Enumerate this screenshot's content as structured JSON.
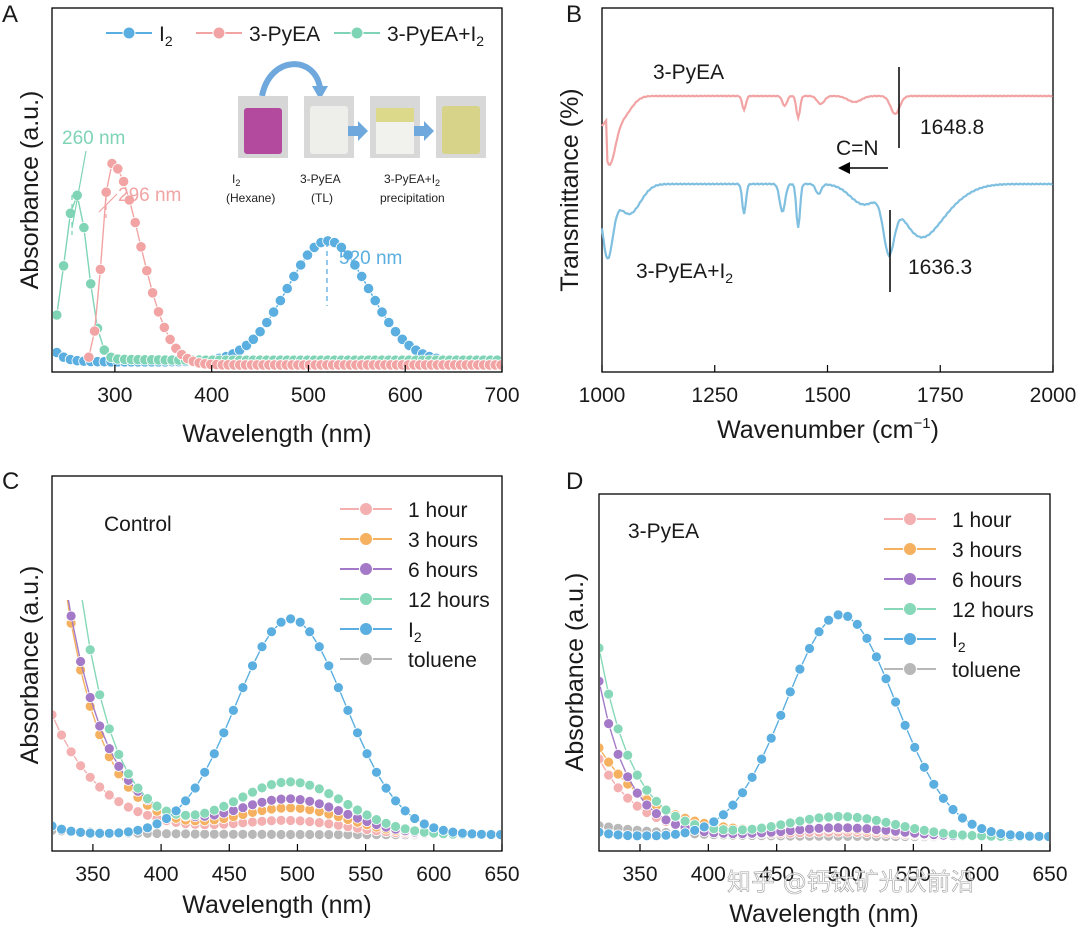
{
  "colors": {
    "i2": "#5aaee0",
    "pyea": "#f2a4a4",
    "pyea_i2": "#7fd4b6",
    "h1": "#f4b0b0",
    "h3": "#f5b160",
    "h6": "#a47ac8",
    "h12": "#86d8b8",
    "toluene": "#b8b8b8"
  },
  "watermark": "知乎 @钙钛矿光伏前沿",
  "chart_data": [
    {
      "panel": "A",
      "type": "scatter",
      "xlabel": "Wavelength (nm)",
      "ylabel": "Absorbance (a.u.)",
      "xlim": [
        235,
        700
      ],
      "xticks": [
        "300",
        "400",
        "500",
        "600",
        "700"
      ],
      "legend": [
        "I2",
        "3-PyEA",
        "3-PyEA+I2"
      ],
      "annotations": [
        "260 nm",
        "296 nm",
        "520 nm"
      ],
      "inset_labels": [
        "I2",
        "(Hexane)",
        "3-PyEA",
        "(TL)",
        "3-PyEA+I2",
        "precipitation"
      ],
      "series": [
        {
          "name": "I2",
          "peak": 520,
          "width": 42,
          "height": 0.78,
          "baseline": 0.04
        },
        {
          "name": "3-PyEA",
          "peak": 296,
          "width": 30,
          "height": 1.3,
          "baseline": 0.02
        },
        {
          "name": "3-PyEA+I2",
          "peak": 260,
          "width": 12,
          "height": 1.05,
          "baseline": 0.05
        }
      ]
    },
    {
      "panel": "B",
      "type": "line",
      "xlabel": "Wavenumber (cm⁻¹)",
      "ylabel": "Transmittance (%)",
      "xlim": [
        1000,
        2000
      ],
      "xticks": [
        "1000",
        "1250",
        "1500",
        "1750",
        "2000"
      ],
      "series_labels": [
        "3-PyEA",
        "3-PyEA+I2"
      ],
      "annotations": [
        "1648.8",
        "1636.3",
        "C=N"
      ],
      "peaks": [
        1648.8,
        1636.3
      ]
    },
    {
      "panel": "C",
      "type": "scatter",
      "title": "Control",
      "xlabel": "Wavelength (nm)",
      "ylabel": "Absorbance (a.u.)",
      "xlim": [
        320,
        650
      ],
      "xticks": [
        "350",
        "400",
        "450",
        "500",
        "550",
        "600",
        "650"
      ],
      "legend": [
        "1 hour",
        "3 hours",
        "6 hours",
        "12 hours",
        "I2",
        "toluene"
      ],
      "peak_heights_at_495": {
        "1 hour": 0.06,
        "3 hours": 0.12,
        "6 hours": 0.16,
        "12 hours": 0.24,
        "I2": 0.82,
        "toluene": 0.0
      }
    },
    {
      "panel": "D",
      "type": "scatter",
      "title": "3-PyEA",
      "xlabel": "Wavelength (nm)",
      "ylabel": "Absorbance (a.u.)",
      "xlim": [
        320,
        650
      ],
      "xticks": [
        "350",
        "400",
        "450",
        "500",
        "550",
        "600",
        "650"
      ],
      "legend": [
        "1 hour",
        "3 hours",
        "6 hours",
        "12 hours",
        "I2",
        "toluene"
      ],
      "peak_heights_at_497": {
        "1 hour": 0.02,
        "3 hours": 0.03,
        "6 hours": 0.04,
        "12 hours": 0.09,
        "I2": 0.88,
        "toluene": 0.0
      }
    }
  ],
  "panels": {
    "a": {
      "letter": "A",
      "xlabel": "Wavelength (nm)",
      "ylabel": "Absorbance (a.u.)",
      "ticks": [
        "300",
        "400",
        "500",
        "600",
        "700"
      ],
      "legend": [
        "I",
        "3-PyEA",
        "3-PyEA+I"
      ],
      "legend_sub": "2",
      "ann_260": "260 nm",
      "ann_296": "296 nm",
      "ann_520": "520 nm",
      "inset_i2": "I",
      "inset_hexane": "(Hexane)",
      "inset_pyea": "3-PyEA",
      "inset_tl": "(TL)",
      "inset_pyea_i2": "3-PyEA+I",
      "inset_precip": "precipitation"
    },
    "b": {
      "letter": "B",
      "xlabel": "Wavenumber (cm",
      "xlabel_sup": "−1",
      "xlabel_end": ")",
      "ylabel": "Transmittance (%)",
      "ticks": [
        "1000",
        "1250",
        "1500",
        "1750",
        "2000"
      ],
      "label_top": "3-PyEA",
      "label_bottom": "3-PyEA+I",
      "peak_top": "1648.8",
      "peak_bottom": "1636.3",
      "cn": "C=N"
    },
    "c": {
      "letter": "C",
      "title": "Control",
      "xlabel": "Wavelength (nm)",
      "ylabel": "Absorbance (a.u.)",
      "ticks": [
        "350",
        "400",
        "450",
        "500",
        "550",
        "600",
        "650"
      ],
      "legend": [
        "1 hour",
        "3 hours",
        "6 hours",
        "12 hours",
        "I",
        "toluene"
      ]
    },
    "d": {
      "letter": "D",
      "title": "3-PyEA",
      "xlabel": "Wavelength (nm)",
      "ylabel": "Absorbance (a.u.)",
      "ticks": [
        "350",
        "400",
        "450",
        "500",
        "550",
        "600",
        "650"
      ],
      "legend": [
        "1 hour",
        "3 hours",
        "6 hours",
        "12 hours",
        "I",
        "toluene"
      ]
    }
  }
}
